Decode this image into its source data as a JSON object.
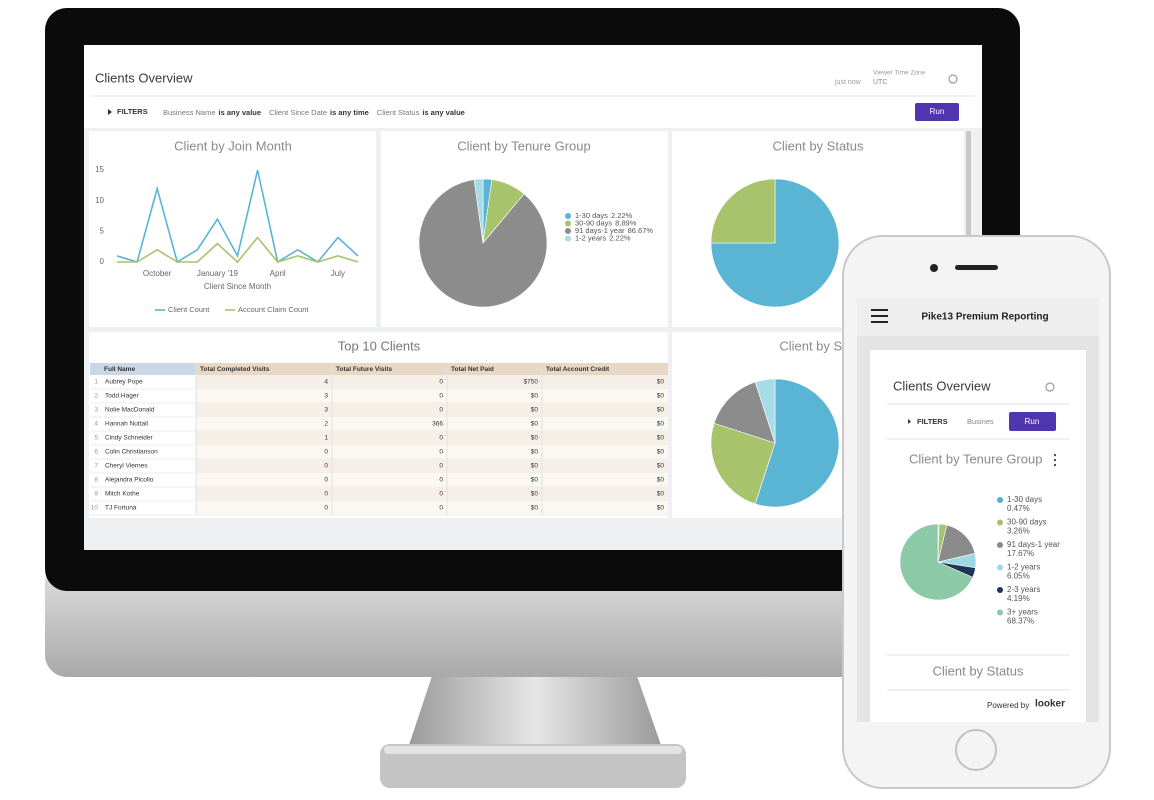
{
  "header": {
    "title": "Clients Overview",
    "updated": "just now",
    "timezone_label": "Viewer Time Zone",
    "timezone": "UTC"
  },
  "filters": {
    "label": "FILTERS",
    "items": [
      {
        "field": "Business Name",
        "condition": "is any value"
      },
      {
        "field": "Client Since Date",
        "condition": "is any time"
      },
      {
        "field": "Client Status",
        "condition": "is any value"
      }
    ],
    "button": "Run"
  },
  "table": {
    "title": "Top 10 Clients",
    "columns": [
      "Full Name",
      "Total Completed Visits",
      "Total Future Visits",
      "Total Net Paid",
      "Total Account Credit"
    ],
    "rows": [
      [
        1,
        "Aubrey Pope",
        4,
        0,
        "$750",
        "$0"
      ],
      [
        2,
        "Todd Hager",
        3,
        0,
        "$0",
        "$0"
      ],
      [
        3,
        "Nolie MacDonald",
        3,
        0,
        "$0",
        "$0"
      ],
      [
        4,
        "Hannah Nuttall",
        2,
        366,
        "$0",
        "$0"
      ],
      [
        5,
        "Cindy Schneider",
        1,
        0,
        "$0",
        "$0"
      ],
      [
        6,
        "Colin Christianson",
        0,
        0,
        "$0",
        "$0"
      ],
      [
        7,
        "Cheryl Viernes",
        0,
        0,
        "$0",
        "$0"
      ],
      [
        8,
        "Alejandra Picollo",
        0,
        0,
        "$0",
        "$0"
      ],
      [
        9,
        "Mitch Kothe",
        0,
        0,
        "$0",
        "$0"
      ],
      [
        10,
        "TJ Fortuna",
        0,
        0,
        "$0",
        "$0"
      ]
    ]
  },
  "phone": {
    "app_title": "Pike13 Premium Reporting",
    "dashboard_title": "Clients Overview",
    "filters_label": "FILTERS",
    "filter_preview": "Busines",
    "button": "Run",
    "next_tile_title": "Client by Status",
    "powered_by": "Powered by",
    "brand": "looker"
  },
  "chart_data": [
    {
      "type": "line",
      "title": "Client by Join Month",
      "x_label": "Client Since Month",
      "categories": [
        null,
        null,
        "October",
        null,
        null,
        "January '19",
        null,
        null,
        "April",
        null,
        null,
        "July",
        null
      ],
      "series": [
        {
          "name": "Client Count",
          "color": "#5ab4d3",
          "values": [
            1,
            0,
            12,
            0,
            2,
            7,
            1,
            15,
            0,
            2,
            0,
            4,
            1
          ]
        },
        {
          "name": "Account Claim Count",
          "color": "#a7c46c",
          "values": [
            0,
            0,
            2,
            0,
            0,
            3,
            0,
            4,
            0,
            1,
            0,
            1,
            0
          ]
        }
      ],
      "ylim": [
        0,
        16
      ],
      "yticks": [
        0,
        5,
        10,
        15
      ]
    },
    {
      "type": "pie",
      "title": "Client by Tenure Group",
      "categories": [
        "1-30 days",
        "30-90 days",
        "91 days-1 year",
        "1-2 years"
      ],
      "values": [
        2.22,
        8.89,
        86.67,
        2.22
      ],
      "value_labels": [
        "2.22%",
        "8.89%",
        "86.67%",
        "2.22%"
      ],
      "colors": [
        "#5ab4d3",
        "#a7c46c",
        "#8c8c8c",
        "#a6dce6"
      ]
    },
    {
      "type": "pie",
      "title": "Client by Status",
      "values": [
        75,
        25
      ],
      "colors": [
        "#5ab4d3",
        "#a7c46c"
      ]
    },
    {
      "type": "pie",
      "title": "Client by Sou",
      "values": [
        55,
        25,
        15,
        5
      ],
      "colors": [
        "#5ab4d3",
        "#a7c46c",
        "#8c8c8c",
        "#a6dce6"
      ]
    },
    {
      "type": "pie",
      "title": "Client by Tenure Group",
      "categories": [
        "1-30 days",
        "30-90 days",
        "91 days-1 year",
        "1-2 years",
        "2-3 years",
        "3+ years"
      ],
      "values": [
        0.47,
        3.26,
        17.67,
        6.05,
        4.19,
        68.37
      ],
      "value_labels": [
        "0.47%",
        "3.26%",
        "17.67%",
        "6.05%",
        "4.19%",
        "68.37%"
      ],
      "colors": [
        "#4db3cf",
        "#a3c46c",
        "#8a8a8a",
        "#9fd8e3",
        "#1d3557",
        "#8cc9a7"
      ]
    }
  ]
}
